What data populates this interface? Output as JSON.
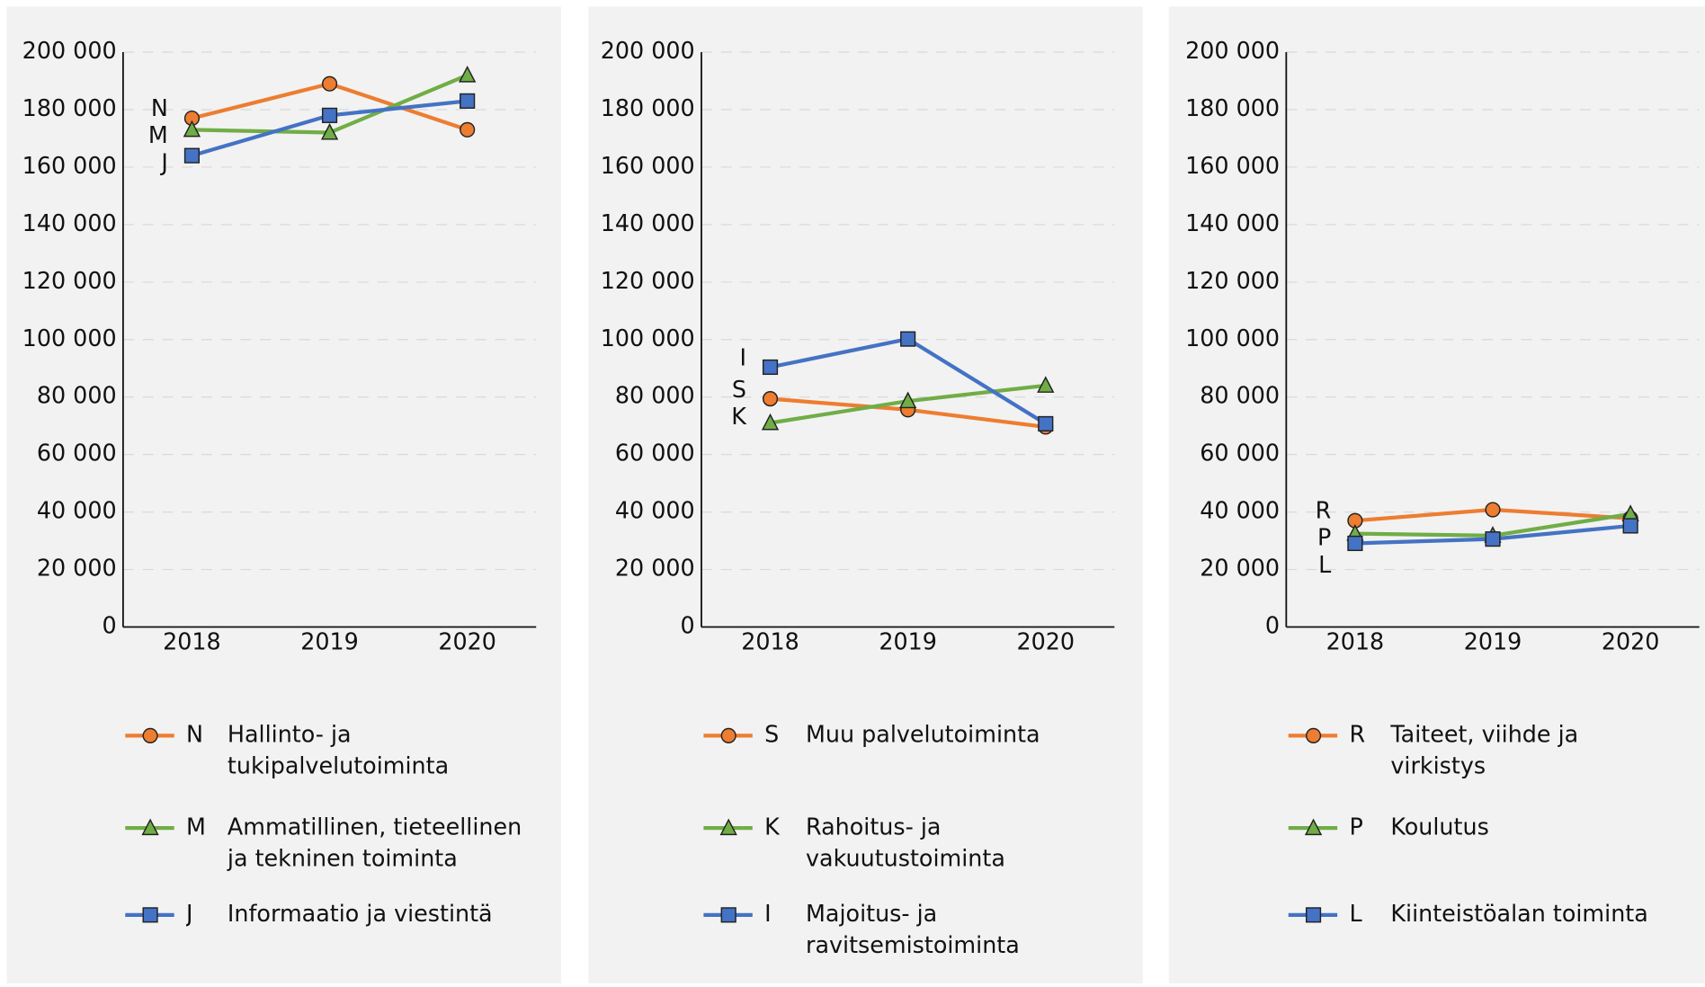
{
  "chart_data": [
    {
      "type": "line",
      "categories": [
        "2018",
        "2019",
        "2020"
      ],
      "ylim": [
        0,
        200000
      ],
      "yticks": [
        0,
        {
          "value": 20000,
          "label": "20 000"
        },
        {
          "value": 40000,
          "label": "40 000"
        },
        {
          "value": 60000,
          "label": "60 000"
        },
        {
          "value": 80000,
          "label": "80 000"
        },
        {
          "value": 100000,
          "label": "100 000"
        },
        {
          "value": 120000,
          "label": "120 000"
        },
        {
          "value": 140000,
          "label": "140 000"
        },
        {
          "value": 160000,
          "label": "160 000"
        },
        {
          "value": 180000,
          "label": "180 000"
        },
        {
          "value": 200000,
          "label": "200 000"
        }
      ],
      "grid": true,
      "series": [
        {
          "code": "N",
          "name": "Hallinto- ja tukipalvelutoiminta",
          "color": "#ed7d31",
          "marker": "circle",
          "values": [
            177000,
            189000,
            173000
          ]
        },
        {
          "code": "M",
          "name": "Ammatillinen, tieteellinen ja tekninen toiminta",
          "color": "#70ad47",
          "marker": "triangle",
          "values": [
            173000,
            172000,
            192000
          ]
        },
        {
          "code": "J",
          "name": "Informaatio ja viestintä",
          "color": "#4472c4",
          "marker": "square",
          "values": [
            164000,
            178000,
            183000
          ]
        }
      ]
    },
    {
      "type": "line",
      "categories": [
        "2018",
        "2019",
        "2020"
      ],
      "ylim": [
        0,
        200000
      ],
      "yticks": [
        0,
        {
          "value": 20000,
          "label": "20 000"
        },
        {
          "value": 40000,
          "label": "40 000"
        },
        {
          "value": 60000,
          "label": "60 000"
        },
        {
          "value": 80000,
          "label": "80 000"
        },
        {
          "value": 100000,
          "label": "100 000"
        },
        {
          "value": 120000,
          "label": "120 000"
        },
        {
          "value": 140000,
          "label": "140 000"
        },
        {
          "value": 160000,
          "label": "160 000"
        },
        {
          "value": 180000,
          "label": "180 000"
        },
        {
          "value": 200000,
          "label": "200 000"
        }
      ],
      "grid": true,
      "series": [
        {
          "code": "S",
          "name": "Muu palvelutoiminta",
          "color": "#ed7d31",
          "marker": "circle",
          "values": [
            79400,
            75600,
            69600
          ]
        },
        {
          "code": "K",
          "name": "Rahoitus- ja vakuutustoiminta",
          "color": "#70ad47",
          "marker": "triangle",
          "values": [
            71000,
            78600,
            84000
          ]
        },
        {
          "code": "I",
          "name": "Majoitus- ja ravitsemistoiminta",
          "color": "#4472c4",
          "marker": "square",
          "values": [
            90400,
            100200,
            70700
          ]
        }
      ]
    },
    {
      "type": "line",
      "categories": [
        "2018",
        "2019",
        "2020"
      ],
      "ylim": [
        0,
        200000
      ],
      "yticks": [
        0,
        {
          "value": 20000,
          "label": "20 000"
        },
        {
          "value": 40000,
          "label": "40 000"
        },
        {
          "value": 60000,
          "label": "60 000"
        },
        {
          "value": 80000,
          "label": "80 000"
        },
        {
          "value": 100000,
          "label": "100 000"
        },
        {
          "value": 120000,
          "label": "120 000"
        },
        {
          "value": 140000,
          "label": "140 000"
        },
        {
          "value": 160000,
          "label": "160 000"
        },
        {
          "value": 180000,
          "label": "180 000"
        },
        {
          "value": 200000,
          "label": "200 000"
        }
      ],
      "grid": true,
      "series": [
        {
          "code": "R",
          "name": "Taiteet, viihde ja virkistys",
          "color": "#ed7d31",
          "marker": "circle",
          "values": [
            37000,
            40800,
            37800
          ]
        },
        {
          "code": "P",
          "name": "Koulutus",
          "color": "#70ad47",
          "marker": "triangle",
          "values": [
            32500,
            31800,
            39300
          ]
        },
        {
          "code": "L",
          "name": "Kiinteistöalan toiminta",
          "color": "#4472c4",
          "marker": "square",
          "values": [
            29100,
            30600,
            35200
          ]
        }
      ]
    }
  ]
}
